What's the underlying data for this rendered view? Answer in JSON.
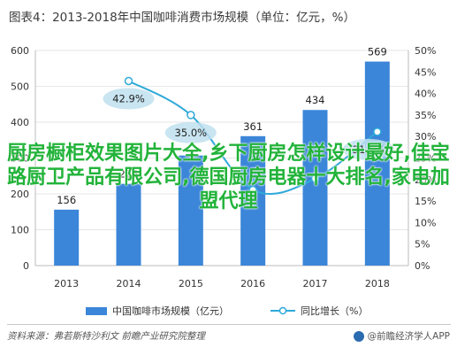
{
  "page": {
    "title": "图表4：2013-2018年中国咖啡消费市场规模（单位：亿元，%）",
    "source": "资料来源：弗若斯特沙利文 前瞻产业研究院整理",
    "brand": "@前瞻经济学人APP",
    "overlay_text": "厨房橱柜效果图片大全,乡下厨房怎样设计最好,佳宝路厨卫产品有限公司,德国厨房电器十大排名,家电加盟代理"
  },
  "colors": {
    "bar": "#3b86d8",
    "line": "#2fa9d9",
    "marker_fill": "#ffffff",
    "label_bubble": "#bfe0ef",
    "grid": "#e6e6e6",
    "axis": "#bbbbbb",
    "overlay": "#22b33a"
  },
  "chart_data": {
    "type": "bar",
    "title": "图表4：2013-2018年中国咖啡消费市场规模（单位：亿元，%）",
    "categories": [
      "2013",
      "2014",
      "2015",
      "2016",
      "2017",
      "2018"
    ],
    "series": [
      {
        "name": "中国咖啡市场规模（亿元）",
        "type": "bar",
        "axis": "left",
        "values": [
          156,
          228,
          307,
          361,
          434,
          569
        ],
        "labels": [
          "156",
          "228",
          "",
          "361",
          "434",
          "569"
        ]
      },
      {
        "name": "同比增长（%）",
        "type": "line",
        "axis": "right",
        "values": [
          null,
          42.9,
          35.0,
          17.6,
          20.2,
          31.1
        ],
        "labels": [
          "",
          "42.9%",
          "35.0%",
          "",
          "",
          "31.1%"
        ]
      }
    ],
    "y_left": {
      "min": 0,
      "max": 600,
      "ticks": [
        "0",
        "100",
        "200",
        "300",
        "400",
        "500",
        "600"
      ]
    },
    "y_right": {
      "min": 0,
      "max": 50,
      "ticks": [
        "0%",
        "5%",
        "10%",
        "15%",
        "20%",
        "25%",
        "30%",
        "35%",
        "40%",
        "45%",
        "50%"
      ]
    },
    "grid": true,
    "legend_position": "bottom"
  }
}
